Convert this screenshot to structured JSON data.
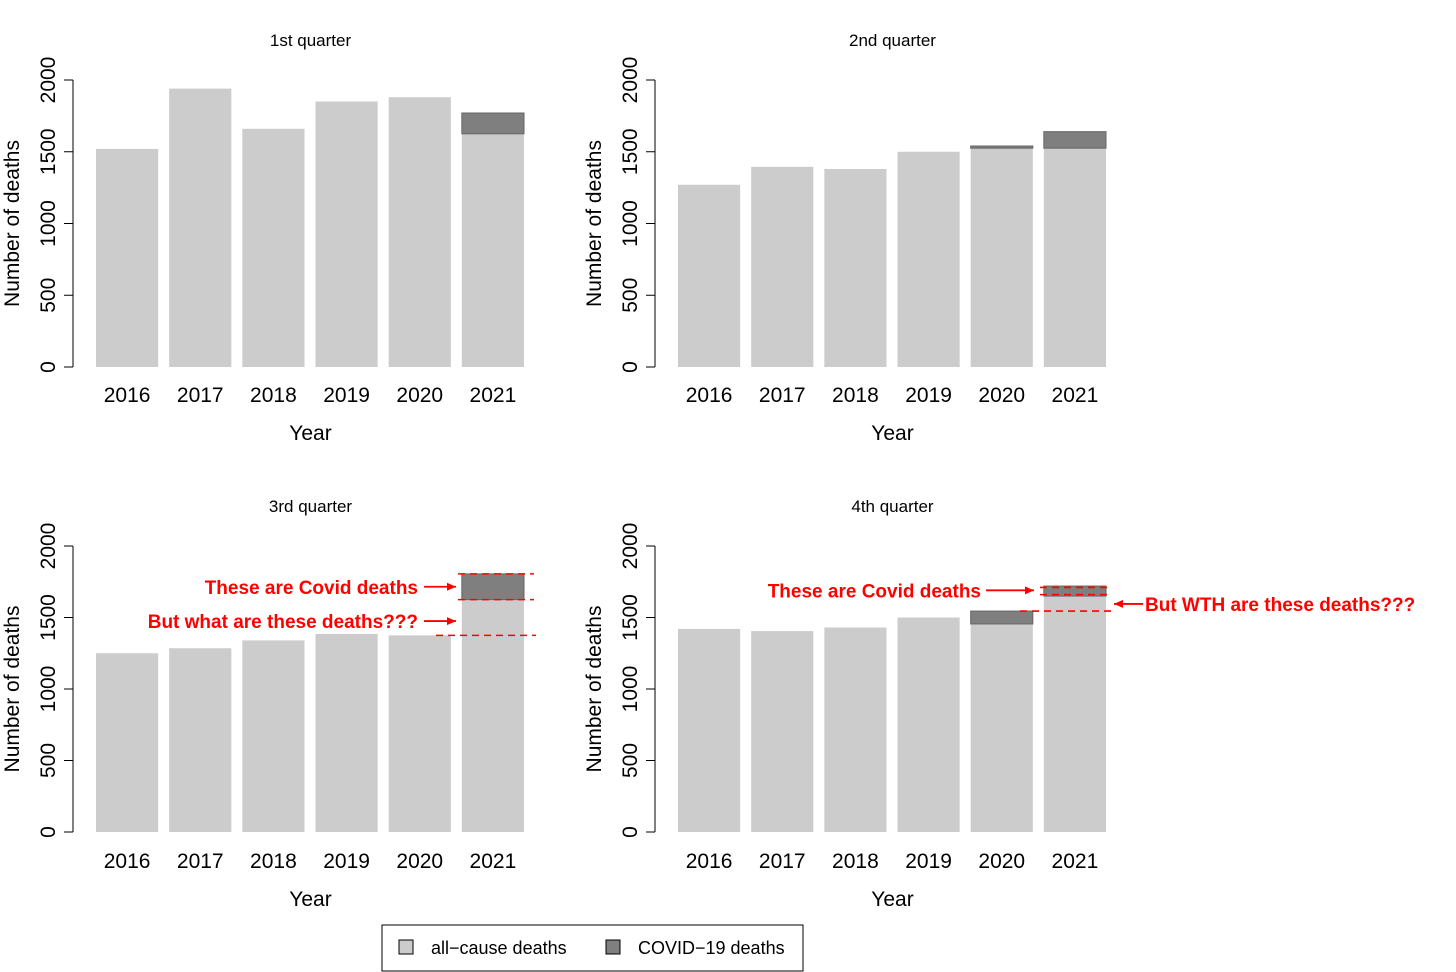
{
  "chart_data": [
    {
      "type": "bar",
      "title": "1st quarter",
      "xlabel": "Year",
      "ylabel": "Number of deaths",
      "categories": [
        "2016",
        "2017",
        "2018",
        "2019",
        "2020",
        "2021"
      ],
      "ylim": [
        0,
        2000
      ],
      "yticks": [
        0,
        500,
        1000,
        1500,
        2000
      ],
      "stacked": true,
      "series": [
        {
          "name": "all-cause deaths",
          "values": [
            1520,
            1940,
            1660,
            1850,
            1880,
            1625
          ]
        },
        {
          "name": "COVID-19 deaths",
          "values": [
            0,
            0,
            0,
            0,
            0,
            145
          ]
        }
      ],
      "annotations": []
    },
    {
      "type": "bar",
      "title": "2nd quarter",
      "xlabel": "Year",
      "ylabel": "Number of deaths",
      "categories": [
        "2016",
        "2017",
        "2018",
        "2019",
        "2020",
        "2021"
      ],
      "ylim": [
        0,
        2000
      ],
      "yticks": [
        0,
        500,
        1000,
        1500,
        2000
      ],
      "stacked": true,
      "series": [
        {
          "name": "all-cause deaths",
          "values": [
            1270,
            1395,
            1380,
            1500,
            1525,
            1525
          ]
        },
        {
          "name": "COVID-19 deaths",
          "values": [
            0,
            0,
            0,
            0,
            15,
            115
          ]
        }
      ],
      "annotations": []
    },
    {
      "type": "bar",
      "title": "3rd quarter",
      "xlabel": "Year",
      "ylabel": "Number of deaths",
      "categories": [
        "2016",
        "2017",
        "2018",
        "2019",
        "2020",
        "2021"
      ],
      "ylim": [
        0,
        2000
      ],
      "yticks": [
        0,
        500,
        1000,
        1500,
        2000
      ],
      "stacked": true,
      "series": [
        {
          "name": "all-cause deaths",
          "values": [
            1250,
            1285,
            1340,
            1385,
            1375,
            1625
          ]
        },
        {
          "name": "COVID-19 deaths",
          "values": [
            0,
            0,
            0,
            0,
            0,
            180
          ]
        }
      ],
      "annotations": [
        {
          "text": "These are Covid deaths",
          "color": "#ff0000",
          "level": 1715,
          "dashed_levels": [
            1805,
            1625
          ]
        },
        {
          "text": "But what are these deaths???",
          "color": "#ff0000",
          "level": 1475,
          "dashed_levels": [
            1375
          ]
        }
      ]
    },
    {
      "type": "bar",
      "title": "4th quarter",
      "xlabel": "Year",
      "ylabel": "Number of deaths",
      "categories": [
        "2016",
        "2017",
        "2018",
        "2019",
        "2020",
        "2021"
      ],
      "ylim": [
        0,
        2000
      ],
      "yticks": [
        0,
        500,
        1000,
        1500,
        2000
      ],
      "stacked": true,
      "series": [
        {
          "name": "all-cause deaths",
          "values": [
            1420,
            1405,
            1430,
            1500,
            1455,
            1650
          ]
        },
        {
          "name": "COVID-19 deaths",
          "values": [
            0,
            0,
            0,
            0,
            90,
            70
          ]
        }
      ],
      "annotations": [
        {
          "text": "These are Covid deaths",
          "color": "#ff0000",
          "level": 1690,
          "dashed_levels": [
            1710,
            1660
          ]
        },
        {
          "text": "But WTH are these deaths???",
          "color": "#ff0000",
          "level": 1595,
          "dashed_levels": [
            1545
          ]
        }
      ]
    }
  ],
  "legend": {
    "items": [
      {
        "label": "all−cause deaths",
        "color": "#cccccc"
      },
      {
        "label": "COVID−19 deaths",
        "color": "#7f7f7f"
      }
    ]
  },
  "colors": {
    "all_cause": "#cccccc",
    "covid": "#7f7f7f",
    "annotation": "#ff0000",
    "axis": "#000000"
  }
}
